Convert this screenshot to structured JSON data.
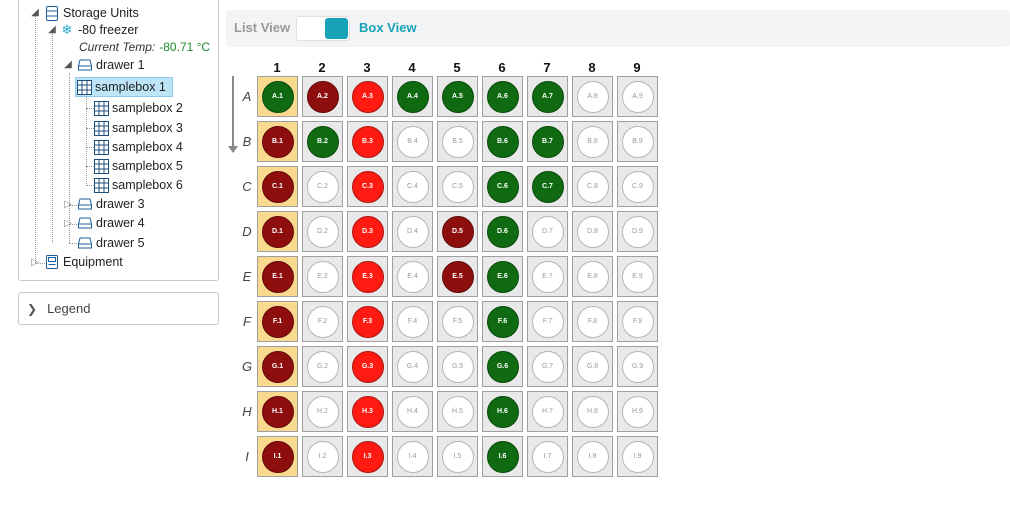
{
  "tree": {
    "root_label": "Storage Units",
    "freezer_label": "-80 freezer",
    "temp_label": "Current Temp:",
    "temp_value": "-80.71 °C",
    "drawer1_label": "drawer 1",
    "samplebox1": "samplebox 1",
    "samplebox2": "samplebox 2",
    "samplebox3": "samplebox 3",
    "samplebox4": "samplebox 4",
    "samplebox5": "samplebox 5",
    "samplebox6": "samplebox 6",
    "drawer3_label": "drawer 3",
    "drawer4_label": "drawer 4",
    "drawer5_label": "drawer 5",
    "equipment_label": "Equipment"
  },
  "legend": {
    "label": "Legend"
  },
  "view_toggle": {
    "list_label": "List View",
    "box_label": "Box View",
    "selected": "Box View"
  },
  "colors": {
    "occupied": "#0f6a12",
    "expired": "#8e0e0e",
    "flagged": "#ff1a12",
    "empty": "#ffffff",
    "column_highlight": "#f8d98e",
    "accent": "#17a2b8"
  },
  "grid": {
    "columns": [
      "1",
      "2",
      "3",
      "4",
      "5",
      "6",
      "7",
      "8",
      "9"
    ],
    "rows": [
      "A",
      "B",
      "C",
      "D",
      "E",
      "F",
      "G",
      "H",
      "I"
    ],
    "cells": [
      [
        {
          "label": "A.1",
          "state": "green"
        },
        {
          "label": "A.2",
          "state": "darkred"
        },
        {
          "label": "A.3",
          "state": "red"
        },
        {
          "label": "A.4",
          "state": "green"
        },
        {
          "label": "A.5",
          "state": "green"
        },
        {
          "label": "A.6",
          "state": "green"
        },
        {
          "label": "A.7",
          "state": "green"
        },
        {
          "label": "A.8",
          "state": "empty"
        },
        {
          "label": "A.9",
          "state": "empty"
        }
      ],
      [
        {
          "label": "B.1",
          "state": "darkred"
        },
        {
          "label": "B.2",
          "state": "green"
        },
        {
          "label": "B.3",
          "state": "red"
        },
        {
          "label": "B.4",
          "state": "empty"
        },
        {
          "label": "B.5",
          "state": "empty"
        },
        {
          "label": "B.6",
          "state": "green"
        },
        {
          "label": "B.7",
          "state": "green"
        },
        {
          "label": "B.8",
          "state": "empty"
        },
        {
          "label": "B.9",
          "state": "empty"
        }
      ],
      [
        {
          "label": "C.1",
          "state": "darkred"
        },
        {
          "label": "C.2",
          "state": "empty"
        },
        {
          "label": "C.3",
          "state": "red"
        },
        {
          "label": "C.4",
          "state": "empty"
        },
        {
          "label": "C.5",
          "state": "empty"
        },
        {
          "label": "C.6",
          "state": "green"
        },
        {
          "label": "C.7",
          "state": "green"
        },
        {
          "label": "C.8",
          "state": "empty"
        },
        {
          "label": "C.9",
          "state": "empty"
        }
      ],
      [
        {
          "label": "D.1",
          "state": "darkred"
        },
        {
          "label": "D.2",
          "state": "empty"
        },
        {
          "label": "D.3",
          "state": "red"
        },
        {
          "label": "D.4",
          "state": "empty"
        },
        {
          "label": "D.5",
          "state": "darkred"
        },
        {
          "label": "D.6",
          "state": "green"
        },
        {
          "label": "D.7",
          "state": "empty"
        },
        {
          "label": "D.8",
          "state": "empty"
        },
        {
          "label": "D.9",
          "state": "empty"
        }
      ],
      [
        {
          "label": "E.1",
          "state": "darkred"
        },
        {
          "label": "E.2",
          "state": "empty"
        },
        {
          "label": "E.3",
          "state": "red"
        },
        {
          "label": "E.4",
          "state": "empty"
        },
        {
          "label": "E.5",
          "state": "darkred"
        },
        {
          "label": "E.6",
          "state": "green"
        },
        {
          "label": "E.7",
          "state": "empty"
        },
        {
          "label": "E.8",
          "state": "empty"
        },
        {
          "label": "E.9",
          "state": "empty"
        }
      ],
      [
        {
          "label": "F.1",
          "state": "darkred"
        },
        {
          "label": "F.2",
          "state": "empty"
        },
        {
          "label": "F.3",
          "state": "red"
        },
        {
          "label": "F.4",
          "state": "empty"
        },
        {
          "label": "F.5",
          "state": "empty"
        },
        {
          "label": "F.6",
          "state": "green"
        },
        {
          "label": "F.7",
          "state": "empty"
        },
        {
          "label": "F.8",
          "state": "empty"
        },
        {
          "label": "F.9",
          "state": "empty"
        }
      ],
      [
        {
          "label": "G.1",
          "state": "darkred"
        },
        {
          "label": "G.2",
          "state": "empty"
        },
        {
          "label": "G.3",
          "state": "red"
        },
        {
          "label": "G.4",
          "state": "empty"
        },
        {
          "label": "G.5",
          "state": "empty"
        },
        {
          "label": "G.6",
          "state": "green"
        },
        {
          "label": "G.7",
          "state": "empty"
        },
        {
          "label": "G.8",
          "state": "empty"
        },
        {
          "label": "G.9",
          "state": "empty"
        }
      ],
      [
        {
          "label": "H.1",
          "state": "darkred"
        },
        {
          "label": "H.2",
          "state": "empty"
        },
        {
          "label": "H.3",
          "state": "red"
        },
        {
          "label": "H.4",
          "state": "empty"
        },
        {
          "label": "H.5",
          "state": "empty"
        },
        {
          "label": "H.6",
          "state": "green"
        },
        {
          "label": "H.7",
          "state": "empty"
        },
        {
          "label": "H.8",
          "state": "empty"
        },
        {
          "label": "H.9",
          "state": "empty"
        }
      ],
      [
        {
          "label": "I.1",
          "state": "darkred"
        },
        {
          "label": "I.2",
          "state": "empty"
        },
        {
          "label": "I.3",
          "state": "red"
        },
        {
          "label": "I.4",
          "state": "empty"
        },
        {
          "label": "I.5",
          "state": "empty"
        },
        {
          "label": "I.6",
          "state": "green"
        },
        {
          "label": "I.7",
          "state": "empty"
        },
        {
          "label": "I.8",
          "state": "empty"
        },
        {
          "label": "I.9",
          "state": "empty"
        }
      ]
    ]
  }
}
